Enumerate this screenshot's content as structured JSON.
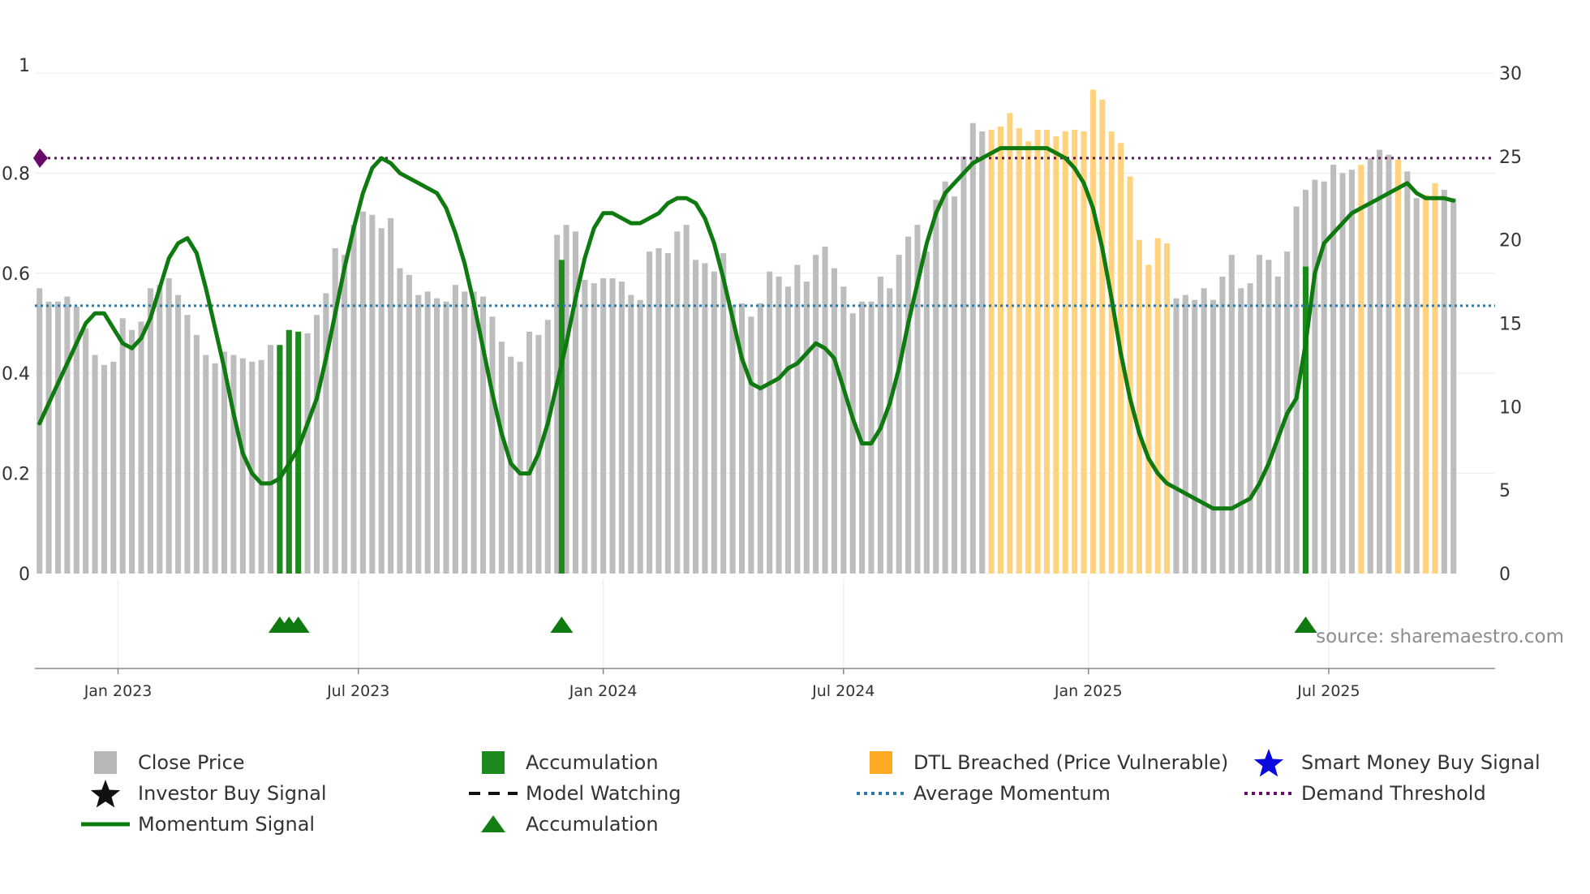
{
  "chart_data": {
    "type": "bar",
    "title": "",
    "source": "source: sharemaestro.com",
    "left_axis": {
      "ylim": [
        0,
        1
      ],
      "ticks": [
        "0",
        "0.2",
        "0.4",
        "0.6",
        "0.8",
        "1"
      ],
      "tick_values": [
        0,
        0.2,
        0.4,
        0.6,
        0.8,
        1
      ]
    },
    "right_axis": {
      "ylim": [
        0,
        30
      ],
      "ticks": [
        "0",
        "5",
        "10",
        "15",
        "20",
        "25",
        "30"
      ],
      "tick_values": [
        0,
        5,
        10,
        15,
        20,
        25,
        30
      ]
    },
    "x_axis": {
      "start_week": 0,
      "end_week": 158,
      "ticks": [
        {
          "label": "Jan 2023",
          "week": 8.5
        },
        {
          "label": "Jul 2023",
          "week": 34.5
        },
        {
          "label": "Jan 2024",
          "week": 61
        },
        {
          "label": "Jul 2024",
          "week": 87
        },
        {
          "label": "Jan 2025",
          "week": 113.5
        },
        {
          "label": "Jul 2025",
          "week": 139.5
        }
      ]
    },
    "weeks_count": 158,
    "close_price": [
      17.1,
      16.3,
      16.3,
      16.6,
      16.0,
      14.7,
      13.1,
      12.5,
      12.7,
      15.3,
      14.6,
      15.1,
      17.1,
      17.3,
      17.7,
      16.7,
      15.5,
      14.3,
      13.1,
      12.6,
      13.3,
      13.1,
      12.9,
      12.7,
      12.8,
      13.7,
      13.6,
      14.4,
      14.4,
      14.4,
      15.5,
      16.8,
      19.5,
      19.1,
      20.9,
      21.7,
      21.5,
      20.7,
      21.3,
      18.3,
      17.9,
      16.7,
      16.9,
      16.5,
      16.3,
      17.3,
      16.9,
      16.9,
      16.6,
      15.4,
      13.9,
      13.0,
      12.7,
      14.5,
      14.3,
      15.2,
      20.3,
      20.9,
      20.5,
      17.6,
      17.4,
      17.7,
      17.7,
      17.5,
      16.7,
      16.4,
      19.3,
      19.5,
      19.2,
      20.5,
      20.9,
      18.8,
      18.6,
      18.1,
      19.2,
      16.1,
      16.2,
      15.4,
      16.2,
      18.1,
      17.8,
      17.2,
      18.5,
      17.5,
      19.1,
      19.6,
      18.3,
      17.2,
      15.6,
      16.3,
      16.3,
      17.8,
      17.1,
      19.1,
      20.2,
      20.9,
      19.3,
      22.4,
      23.5,
      22.6,
      25.0,
      27.0,
      26.5,
      26.6,
      26.8,
      27.6,
      26.7,
      25.9,
      26.6,
      26.6,
      26.2,
      26.5,
      26.6,
      26.5,
      29.0,
      28.4,
      26.5,
      25.8,
      23.8,
      20.0,
      18.5,
      20.1,
      19.8,
      16.5,
      16.7,
      16.4,
      17.1,
      16.4,
      17.8,
      19.1,
      17.1,
      17.4,
      19.1,
      18.8,
      17.8,
      19.3,
      22.0,
      23.0,
      23.6,
      23.5,
      24.5,
      24.0,
      24.2,
      24.5,
      24.9,
      25.4,
      25.1,
      24.8,
      24.1,
      22.5,
      22.7,
      23.4,
      23.0,
      22.5
    ],
    "accumulation_bars": [
      {
        "week": 26,
        "value": 13.7
      },
      {
        "week": 27,
        "value": 14.6
      },
      {
        "week": 28,
        "value": 14.5
      },
      {
        "week": 56.5,
        "value": 18.8
      },
      {
        "week": 137,
        "value": 18.4
      }
    ],
    "dtl_breached_weeks": [
      103,
      104,
      105,
      106,
      107,
      108,
      109,
      110,
      111,
      112,
      113,
      114,
      115,
      116,
      117,
      118,
      119,
      120,
      121,
      122,
      143,
      147,
      150,
      151
    ],
    "momentum": [
      [
        0,
        0.3
      ],
      [
        1,
        0.34
      ],
      [
        2,
        0.38
      ],
      [
        3,
        0.42
      ],
      [
        4,
        0.46
      ],
      [
        5,
        0.5
      ],
      [
        6,
        0.52
      ],
      [
        7,
        0.52
      ],
      [
        8,
        0.49
      ],
      [
        9,
        0.46
      ],
      [
        10,
        0.45
      ],
      [
        11,
        0.47
      ],
      [
        12,
        0.51
      ],
      [
        13,
        0.57
      ],
      [
        14,
        0.63
      ],
      [
        15,
        0.66
      ],
      [
        16,
        0.67
      ],
      [
        17,
        0.64
      ],
      [
        18,
        0.57
      ],
      [
        19,
        0.49
      ],
      [
        20,
        0.41
      ],
      [
        21,
        0.32
      ],
      [
        22,
        0.24
      ],
      [
        23,
        0.2
      ],
      [
        24,
        0.18
      ],
      [
        25,
        0.18
      ],
      [
        26,
        0.19
      ],
      [
        27,
        0.22
      ],
      [
        28,
        0.25
      ],
      [
        29,
        0.3
      ],
      [
        30,
        0.35
      ],
      [
        31,
        0.43
      ],
      [
        32,
        0.52
      ],
      [
        33,
        0.61
      ],
      [
        34,
        0.69
      ],
      [
        35,
        0.76
      ],
      [
        36,
        0.81
      ],
      [
        37,
        0.83
      ],
      [
        38,
        0.82
      ],
      [
        39,
        0.8
      ],
      [
        40,
        0.79
      ],
      [
        41,
        0.78
      ],
      [
        42,
        0.77
      ],
      [
        43,
        0.76
      ],
      [
        44,
        0.73
      ],
      [
        45,
        0.68
      ],
      [
        46,
        0.62
      ],
      [
        47,
        0.54
      ],
      [
        48,
        0.45
      ],
      [
        49,
        0.36
      ],
      [
        50,
        0.28
      ],
      [
        51,
        0.22
      ],
      [
        52,
        0.2
      ],
      [
        53,
        0.2
      ],
      [
        54,
        0.24
      ],
      [
        55,
        0.3
      ],
      [
        56,
        0.38
      ],
      [
        57,
        0.46
      ],
      [
        58,
        0.55
      ],
      [
        59,
        0.63
      ],
      [
        60,
        0.69
      ],
      [
        61,
        0.72
      ],
      [
        62,
        0.72
      ],
      [
        63,
        0.71
      ],
      [
        64,
        0.7
      ],
      [
        65,
        0.7
      ],
      [
        66,
        0.71
      ],
      [
        67,
        0.72
      ],
      [
        68,
        0.74
      ],
      [
        69,
        0.75
      ],
      [
        70,
        0.75
      ],
      [
        71,
        0.74
      ],
      [
        72,
        0.71
      ],
      [
        73,
        0.66
      ],
      [
        74,
        0.59
      ],
      [
        75,
        0.51
      ],
      [
        76,
        0.43
      ],
      [
        77,
        0.38
      ],
      [
        78,
        0.37
      ],
      [
        79,
        0.38
      ],
      [
        80,
        0.39
      ],
      [
        81,
        0.41
      ],
      [
        82,
        0.42
      ],
      [
        83,
        0.44
      ],
      [
        84,
        0.46
      ],
      [
        85,
        0.45
      ],
      [
        86,
        0.43
      ],
      [
        87,
        0.37
      ],
      [
        88,
        0.31
      ],
      [
        89,
        0.26
      ],
      [
        90,
        0.26
      ],
      [
        91,
        0.29
      ],
      [
        92,
        0.34
      ],
      [
        93,
        0.41
      ],
      [
        94,
        0.5
      ],
      [
        95,
        0.58
      ],
      [
        96,
        0.66
      ],
      [
        97,
        0.72
      ],
      [
        98,
        0.76
      ],
      [
        99,
        0.78
      ],
      [
        100,
        0.8
      ],
      [
        101,
        0.82
      ],
      [
        102,
        0.83
      ],
      [
        103,
        0.84
      ],
      [
        104,
        0.85
      ],
      [
        105,
        0.85
      ],
      [
        106,
        0.85
      ],
      [
        107,
        0.85
      ],
      [
        108,
        0.85
      ],
      [
        109,
        0.85
      ],
      [
        110,
        0.84
      ],
      [
        111,
        0.83
      ],
      [
        112,
        0.81
      ],
      [
        113,
        0.78
      ],
      [
        114,
        0.73
      ],
      [
        115,
        0.65
      ],
      [
        116,
        0.55
      ],
      [
        117,
        0.44
      ],
      [
        118,
        0.35
      ],
      [
        119,
        0.28
      ],
      [
        120,
        0.23
      ],
      [
        121,
        0.2
      ],
      [
        122,
        0.18
      ],
      [
        123,
        0.17
      ],
      [
        124,
        0.16
      ],
      [
        125,
        0.15
      ],
      [
        126,
        0.14
      ],
      [
        127,
        0.13
      ],
      [
        128,
        0.13
      ],
      [
        129,
        0.13
      ],
      [
        130,
        0.14
      ],
      [
        131,
        0.15
      ],
      [
        132,
        0.18
      ],
      [
        133,
        0.22
      ],
      [
        134,
        0.27
      ],
      [
        135,
        0.32
      ],
      [
        136,
        0.35
      ],
      [
        137,
        0.46
      ],
      [
        138,
        0.6
      ],
      [
        139,
        0.66
      ],
      [
        140,
        0.68
      ],
      [
        141,
        0.7
      ],
      [
        142,
        0.72
      ],
      [
        143,
        0.73
      ],
      [
        144,
        0.74
      ],
      [
        145,
        0.75
      ],
      [
        146,
        0.76
      ],
      [
        147,
        0.77
      ],
      [
        148,
        0.78
      ],
      [
        149,
        0.76
      ],
      [
        150,
        0.75
      ],
      [
        151,
        0.75
      ],
      [
        152,
        0.75
      ],
      [
        153,
        0.745
      ]
    ],
    "average_momentum": 0.535,
    "demand_threshold": 0.83,
    "accumulation_markers": [
      26,
      27,
      28,
      56.5,
      137
    ],
    "legend": [
      {
        "key": "close_price",
        "label": "Close Price",
        "color": "#b7b7b7",
        "symbol": "square"
      },
      {
        "key": "accumulation_bar",
        "label": "Accumulation",
        "color": "#1e8a1e",
        "symbol": "square"
      },
      {
        "key": "dtl",
        "label": "DTL Breached (Price Vulnerable)",
        "color": "#ffaa22",
        "symbol": "square"
      },
      {
        "key": "smart_money",
        "label": "Smart Money Buy Signal",
        "color": "#0a0adc",
        "symbol": "star"
      },
      {
        "key": "investor_buy",
        "label": "Investor Buy Signal",
        "color": "#111111",
        "symbol": "star"
      },
      {
        "key": "model_watching",
        "label": "Model Watching",
        "color": "#111111",
        "symbol": "dash"
      },
      {
        "key": "avg_momentum",
        "label": "Average Momentum",
        "color": "#2a7ab0",
        "symbol": "dot"
      },
      {
        "key": "demand_threshold",
        "label": "Demand Threshold",
        "color": "#6a0a6a",
        "symbol": "dot"
      },
      {
        "key": "momentum_signal",
        "label": "Momentum Signal",
        "color": "#0f7a0f",
        "symbol": "line"
      },
      {
        "key": "accumulation_marker",
        "label": "Accumulation",
        "color": "#137f13",
        "symbol": "triangle"
      }
    ]
  },
  "colors": {
    "close_price": "#bdbdbd",
    "accumulation": "#1e8a1e",
    "dtl": "#ffd27f",
    "momentum": "#0f7a0f",
    "avg_momentum": "#2a7ab0",
    "demand_threshold": "#6a0a6a",
    "grid": "#ececec",
    "axis": "#888888"
  }
}
